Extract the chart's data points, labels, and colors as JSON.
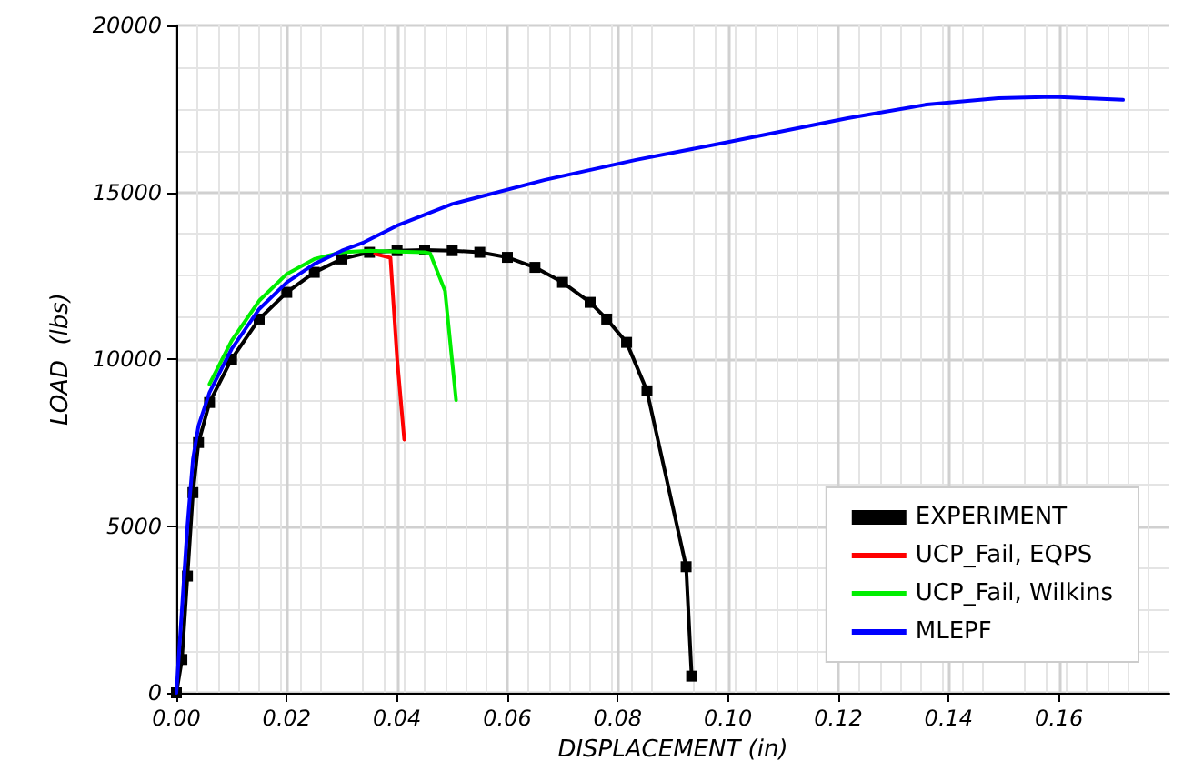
{
  "chart_data": {
    "type": "line",
    "xlabel": "DISPLACEMENT (in)",
    "ylabel": "LOAD  (lbs)",
    "xlim": [
      0,
      0.18
    ],
    "ylim": [
      0,
      20000
    ],
    "xticks": [
      {
        "value": 0,
        "label": "0.00"
      },
      {
        "value": 0.02,
        "label": "0.02"
      },
      {
        "value": 0.04,
        "label": "0.04"
      },
      {
        "value": 0.06,
        "label": "0.06"
      },
      {
        "value": 0.08,
        "label": "0.08"
      },
      {
        "value": 0.1,
        "label": "0.10"
      },
      {
        "value": 0.12,
        "label": "0.12"
      },
      {
        "value": 0.14,
        "label": "0.14"
      },
      {
        "value": 0.16,
        "label": "0.16"
      }
    ],
    "yticks": [
      0,
      5000,
      10000,
      15000,
      20000
    ],
    "grid": true,
    "legend": "bottom right",
    "line_style": "solid",
    "series": [
      {
        "name": "EXPERIMENT",
        "color": "#000000",
        "marker": "square",
        "x": [
          0,
          0.001,
          0.002,
          0.003,
          0.004,
          0.006,
          0.01,
          0.015,
          0.02,
          0.025,
          0.03,
          0.035,
          0.04,
          0.045,
          0.05,
          0.055,
          0.06,
          0.065,
          0.07,
          0.075,
          0.078,
          0.0816,
          0.0853,
          0.0924,
          0.0934
        ],
        "values": [
          0,
          1000,
          3500,
          6000,
          7500,
          8700,
          10000,
          11200,
          12000,
          12600,
          13000,
          13200,
          13250,
          13270,
          13250,
          13200,
          13050,
          12750,
          12300,
          11700,
          11200,
          10500,
          9050,
          3780,
          500
        ]
      },
      {
        "name": "UCP_Fail, EQPS",
        "color": "#ff0000",
        "marker": "none",
        "x": [
          0.036,
          0.0388,
          0.04,
          0.0413
        ],
        "values": [
          13150,
          13040,
          10040,
          7590
        ]
      },
      {
        "name": "UCP_Fail, Wilkins",
        "color": "#00ee00",
        "marker": "none",
        "x": [
          0.006,
          0.01,
          0.015,
          0.02,
          0.025,
          0.03,
          0.035,
          0.04,
          0.045,
          0.046,
          0.0487,
          0.0507
        ],
        "values": [
          9250,
          10550,
          11750,
          12550,
          13000,
          13200,
          13250,
          13220,
          13200,
          13170,
          12040,
          8770
        ]
      },
      {
        "name": "MLEPF",
        "color": "#0000ff",
        "marker": "none",
        "x": [
          0,
          0.001,
          0.002,
          0.003,
          0.004,
          0.006,
          0.01,
          0.015,
          0.02,
          0.025,
          0.03,
          0.034,
          0.04,
          0.05,
          0.0668,
          0.0833,
          0.0998,
          0.1217,
          0.136,
          0.149,
          0.159,
          0.1716
        ],
        "values": [
          0,
          2500,
          5000,
          7000,
          8000,
          9000,
          10300,
          11500,
          12300,
          12850,
          13250,
          13500,
          14000,
          14650,
          15370,
          15970,
          16500,
          17220,
          17630,
          17820,
          17860,
          17770
        ]
      }
    ]
  }
}
